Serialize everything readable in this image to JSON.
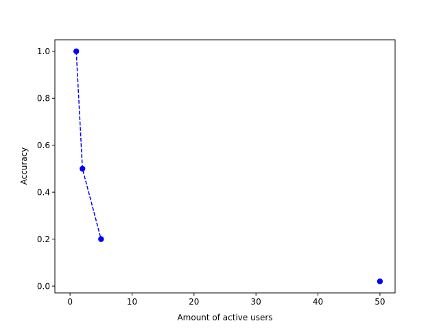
{
  "chart_data": {
    "type": "scatter",
    "title": "",
    "xlabel": "Amount of active users",
    "ylabel": "Accuracy",
    "xlim": [
      -2.45,
      52.45
    ],
    "ylim": [
      -0.029,
      1.049
    ],
    "grid": false,
    "x_ticks": [
      0,
      10,
      20,
      30,
      40,
      50
    ],
    "y_ticks": [
      0.0,
      0.2,
      0.4,
      0.6,
      0.8,
      1.0
    ],
    "x_tick_labels": [
      "0",
      "10",
      "20",
      "30",
      "40",
      "50"
    ],
    "y_tick_labels": [
      "0.0",
      "0.2",
      "0.4",
      "0.6",
      "0.8",
      "1.0"
    ],
    "series": [
      {
        "color": "#0000ff",
        "line_style": "dashed",
        "marker": "circle",
        "x": [
          1,
          2,
          5
        ],
        "y": [
          1.0,
          0.5,
          0.2
        ]
      },
      {
        "color": "#0000ff",
        "line_style": "none",
        "marker": "circle",
        "x": [
          50
        ],
        "y": [
          0.02
        ]
      }
    ]
  }
}
